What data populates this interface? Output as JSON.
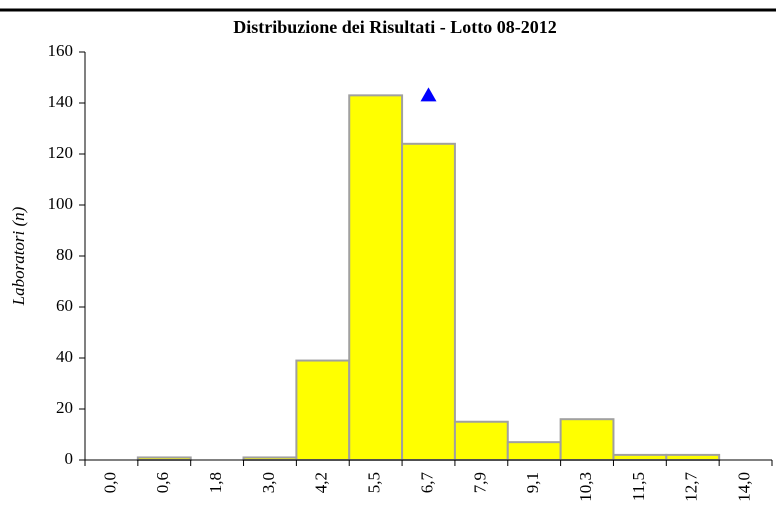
{
  "chart_data": {
    "type": "bar",
    "title": "Distribuzione dei Risultati  - Lotto 08-2012",
    "y_label": "Laboratori (n)",
    "categories": [
      "0,0",
      "0,6",
      "1,8",
      "3,0",
      "4,2",
      "5,5",
      "6,7",
      "7,9",
      "9,1",
      "10,3",
      "11,5",
      "12,7",
      "14,0"
    ],
    "series": [
      {
        "type": "bar",
        "color": "#ffff00",
        "values": [
          0,
          1,
          0,
          1,
          39,
          143,
          124,
          15,
          7,
          16,
          2,
          2,
          0
        ]
      },
      {
        "type": "marker",
        "color": "#0000ff",
        "values": [
          null,
          null,
          null,
          null,
          null,
          null,
          143,
          null,
          null,
          null,
          null,
          null,
          null
        ]
      }
    ],
    "ylim": [
      0,
      160
    ],
    "yticks": [
      0,
      20,
      40,
      60,
      80,
      100,
      120,
      140,
      160
    ]
  }
}
